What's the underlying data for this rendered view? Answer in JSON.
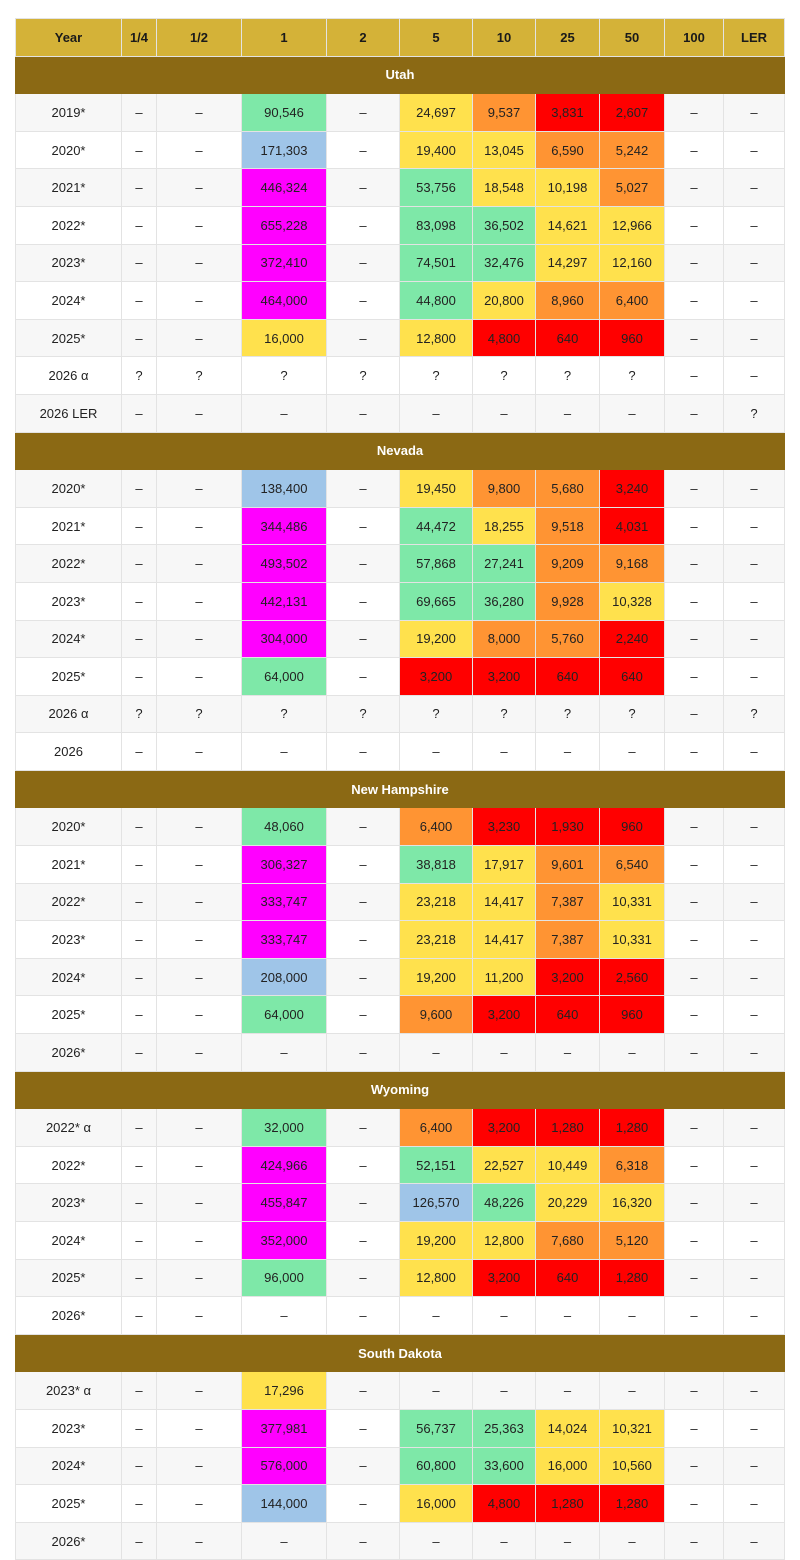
{
  "columns": [
    "Year",
    "1/4",
    "1/2",
    "1",
    "2",
    "5",
    "10",
    "25",
    "50",
    "100",
    "LER"
  ],
  "colors": {
    "green": "#7ee8a8",
    "blue": "#9fc5e8",
    "magenta": "#ff00ff",
    "yellow": "#ffe14d",
    "orange": "#ff9433",
    "red": "#ff0000",
    "section": "#8b6914",
    "header": "#d4b238"
  },
  "sections": [
    {
      "name": "Utah",
      "rows": [
        {
          "cells": [
            "2019*",
            "–",
            "–",
            "90,546",
            "–",
            "24,697",
            "9,537",
            "3,831",
            "2,607",
            "–",
            "–"
          ],
          "colors": [
            "",
            "",
            "",
            "green",
            "",
            "yellow",
            "orange",
            "red",
            "red",
            "",
            ""
          ]
        },
        {
          "cells": [
            "2020*",
            "–",
            "–",
            "171,303",
            "–",
            "19,400",
            "13,045",
            "6,590",
            "5,242",
            "–",
            "–"
          ],
          "colors": [
            "",
            "",
            "",
            "blue",
            "",
            "yellow",
            "yellow",
            "orange",
            "orange",
            "",
            ""
          ]
        },
        {
          "cells": [
            "2021*",
            "–",
            "–",
            "446,324",
            "–",
            "53,756",
            "18,548",
            "10,198",
            "5,027",
            "–",
            "–"
          ],
          "colors": [
            "",
            "",
            "",
            "magenta",
            "",
            "green",
            "yellow",
            "yellow",
            "orange",
            "",
            ""
          ]
        },
        {
          "cells": [
            "2022*",
            "–",
            "–",
            "655,228",
            "–",
            "83,098",
            "36,502",
            "14,621",
            "12,966",
            "–",
            "–"
          ],
          "colors": [
            "",
            "",
            "",
            "magenta",
            "",
            "green",
            "green",
            "yellow",
            "yellow",
            "",
            ""
          ]
        },
        {
          "cells": [
            "2023*",
            "–",
            "–",
            "372,410",
            "–",
            "74,501",
            "32,476",
            "14,297",
            "12,160",
            "–",
            "–"
          ],
          "colors": [
            "",
            "",
            "",
            "magenta",
            "",
            "green",
            "green",
            "yellow",
            "yellow",
            "",
            ""
          ]
        },
        {
          "cells": [
            "2024*",
            "–",
            "–",
            "464,000",
            "–",
            "44,800",
            "20,800",
            "8,960",
            "6,400",
            "–",
            "–"
          ],
          "colors": [
            "",
            "",
            "",
            "magenta",
            "",
            "green",
            "yellow",
            "orange",
            "orange",
            "",
            ""
          ]
        },
        {
          "cells": [
            "2025*",
            "–",
            "–",
            "16,000",
            "–",
            "12,800",
            "4,800",
            "640",
            "960",
            "–",
            "–"
          ],
          "colors": [
            "",
            "",
            "",
            "yellow",
            "",
            "yellow",
            "red",
            "red",
            "red",
            "",
            ""
          ]
        },
        {
          "cells": [
            "2026 α",
            "?",
            "?",
            "?",
            "?",
            "?",
            "?",
            "?",
            "?",
            "–",
            "–"
          ],
          "colors": [
            "",
            "",
            "",
            "",
            "",
            "",
            "",
            "",
            "",
            "",
            ""
          ]
        },
        {
          "cells": [
            "2026 LER",
            "–",
            "–",
            "–",
            "–",
            "–",
            "–",
            "–",
            "–",
            "–",
            "?"
          ],
          "colors": [
            "",
            "",
            "",
            "",
            "",
            "",
            "",
            "",
            "",
            "",
            ""
          ]
        }
      ]
    },
    {
      "name": "Nevada",
      "rows": [
        {
          "cells": [
            "2020*",
            "–",
            "–",
            "138,400",
            "–",
            "19,450",
            "9,800",
            "5,680",
            "3,240",
            "–",
            "–"
          ],
          "colors": [
            "",
            "",
            "",
            "blue",
            "",
            "yellow",
            "orange",
            "orange",
            "red",
            "",
            ""
          ]
        },
        {
          "cells": [
            "2021*",
            "–",
            "–",
            "344,486",
            "–",
            "44,472",
            "18,255",
            "9,518",
            "4,031",
            "–",
            "–"
          ],
          "colors": [
            "",
            "",
            "",
            "magenta",
            "",
            "green",
            "yellow",
            "orange",
            "red",
            "",
            ""
          ]
        },
        {
          "cells": [
            "2022*",
            "–",
            "–",
            "493,502",
            "–",
            "57,868",
            "27,241",
            "9,209",
            "9,168",
            "–",
            "–"
          ],
          "colors": [
            "",
            "",
            "",
            "magenta",
            "",
            "green",
            "green",
            "orange",
            "orange",
            "",
            ""
          ]
        },
        {
          "cells": [
            "2023*",
            "–",
            "–",
            "442,131",
            "–",
            "69,665",
            "36,280",
            "9,928",
            "10,328",
            "–",
            "–"
          ],
          "colors": [
            "",
            "",
            "",
            "magenta",
            "",
            "green",
            "green",
            "orange",
            "yellow",
            "",
            ""
          ]
        },
        {
          "cells": [
            "2024*",
            "–",
            "–",
            "304,000",
            "–",
            "19,200",
            "8,000",
            "5,760",
            "2,240",
            "–",
            "–"
          ],
          "colors": [
            "",
            "",
            "",
            "magenta",
            "",
            "yellow",
            "orange",
            "orange",
            "red",
            "",
            ""
          ]
        },
        {
          "cells": [
            "2025*",
            "–",
            "–",
            "64,000",
            "–",
            "3,200",
            "3,200",
            "640",
            "640",
            "–",
            "–"
          ],
          "colors": [
            "",
            "",
            "",
            "green",
            "",
            "red",
            "red",
            "red",
            "red",
            "",
            ""
          ]
        },
        {
          "cells": [
            "2026 α",
            "?",
            "?",
            "?",
            "?",
            "?",
            "?",
            "?",
            "?",
            "–",
            "?"
          ],
          "colors": [
            "",
            "",
            "",
            "",
            "",
            "",
            "",
            "",
            "",
            "",
            ""
          ]
        },
        {
          "cells": [
            "2026",
            "–",
            "–",
            "–",
            "–",
            "–",
            "–",
            "–",
            "–",
            "–",
            "–"
          ],
          "colors": [
            "",
            "",
            "",
            "",
            "",
            "",
            "",
            "",
            "",
            "",
            ""
          ]
        }
      ]
    },
    {
      "name": "New Hampshire",
      "rows": [
        {
          "cells": [
            "2020*",
            "–",
            "–",
            "48,060",
            "–",
            "6,400",
            "3,230",
            "1,930",
            "960",
            "–",
            "–"
          ],
          "colors": [
            "",
            "",
            "",
            "green",
            "",
            "orange",
            "red",
            "red",
            "red",
            "",
            ""
          ]
        },
        {
          "cells": [
            "2021*",
            "–",
            "–",
            "306,327",
            "–",
            "38,818",
            "17,917",
            "9,601",
            "6,540",
            "–",
            "–"
          ],
          "colors": [
            "",
            "",
            "",
            "magenta",
            "",
            "green",
            "yellow",
            "orange",
            "orange",
            "",
            ""
          ]
        },
        {
          "cells": [
            "2022*",
            "–",
            "–",
            "333,747",
            "–",
            "23,218",
            "14,417",
            "7,387",
            "10,331",
            "–",
            "–"
          ],
          "colors": [
            "",
            "",
            "",
            "magenta",
            "",
            "yellow",
            "yellow",
            "orange",
            "yellow",
            "",
            ""
          ]
        },
        {
          "cells": [
            "2023*",
            "–",
            "–",
            "333,747",
            "–",
            "23,218",
            "14,417",
            "7,387",
            "10,331",
            "–",
            "–"
          ],
          "colors": [
            "",
            "",
            "",
            "magenta",
            "",
            "yellow",
            "yellow",
            "orange",
            "yellow",
            "",
            ""
          ]
        },
        {
          "cells": [
            "2024*",
            "–",
            "–",
            "208,000",
            "–",
            "19,200",
            "11,200",
            "3,200",
            "2,560",
            "–",
            "–"
          ],
          "colors": [
            "",
            "",
            "",
            "blue",
            "",
            "yellow",
            "yellow",
            "red",
            "red",
            "",
            ""
          ]
        },
        {
          "cells": [
            "2025*",
            "–",
            "–",
            "64,000",
            "–",
            "9,600",
            "3,200",
            "640",
            "960",
            "–",
            "–"
          ],
          "colors": [
            "",
            "",
            "",
            "green",
            "",
            "orange",
            "red",
            "red",
            "red",
            "",
            ""
          ]
        },
        {
          "cells": [
            "2026*",
            "–",
            "–",
            "–",
            "–",
            "–",
            "–",
            "–",
            "–",
            "–",
            "–"
          ],
          "colors": [
            "",
            "",
            "",
            "",
            "",
            "",
            "",
            "",
            "",
            "",
            ""
          ]
        }
      ]
    },
    {
      "name": "Wyoming",
      "rows": [
        {
          "cells": [
            "2022* α",
            "–",
            "–",
            "32,000",
            "–",
            "6,400",
            "3,200",
            "1,280",
            "1,280",
            "–",
            "–"
          ],
          "colors": [
            "",
            "",
            "",
            "green",
            "",
            "orange",
            "red",
            "red",
            "red",
            "",
            ""
          ]
        },
        {
          "cells": [
            "2022*",
            "–",
            "–",
            "424,966",
            "–",
            "52,151",
            "22,527",
            "10,449",
            "6,318",
            "–",
            "–"
          ],
          "colors": [
            "",
            "",
            "",
            "magenta",
            "",
            "green",
            "yellow",
            "yellow",
            "orange",
            "",
            ""
          ]
        },
        {
          "cells": [
            "2023*",
            "–",
            "–",
            "455,847",
            "–",
            "126,570",
            "48,226",
            "20,229",
            "16,320",
            "–",
            "–"
          ],
          "colors": [
            "",
            "",
            "",
            "magenta",
            "",
            "blue",
            "green",
            "yellow",
            "yellow",
            "",
            ""
          ]
        },
        {
          "cells": [
            "2024*",
            "–",
            "–",
            "352,000",
            "–",
            "19,200",
            "12,800",
            "7,680",
            "5,120",
            "–",
            "–"
          ],
          "colors": [
            "",
            "",
            "",
            "magenta",
            "",
            "yellow",
            "yellow",
            "orange",
            "orange",
            "",
            ""
          ]
        },
        {
          "cells": [
            "2025*",
            "–",
            "–",
            "96,000",
            "–",
            "12,800",
            "3,200",
            "640",
            "1,280",
            "–",
            "–"
          ],
          "colors": [
            "",
            "",
            "",
            "green",
            "",
            "yellow",
            "red",
            "red",
            "red",
            "",
            ""
          ]
        },
        {
          "cells": [
            "2026*",
            "–",
            "–",
            "–",
            "–",
            "–",
            "–",
            "–",
            "–",
            "–",
            "–"
          ],
          "colors": [
            "",
            "",
            "",
            "",
            "",
            "",
            "",
            "",
            "",
            "",
            ""
          ]
        }
      ]
    },
    {
      "name": "South Dakota",
      "rows": [
        {
          "cells": [
            "2023* α",
            "–",
            "–",
            "17,296",
            "–",
            "–",
            "–",
            "–",
            "–",
            "–",
            "–"
          ],
          "colors": [
            "",
            "",
            "",
            "yellow",
            "",
            "",
            "",
            "",
            "",
            "",
            ""
          ]
        },
        {
          "cells": [
            "2023*",
            "–",
            "–",
            "377,981",
            "–",
            "56,737",
            "25,363",
            "14,024",
            "10,321",
            "–",
            "–"
          ],
          "colors": [
            "",
            "",
            "",
            "magenta",
            "",
            "green",
            "green",
            "yellow",
            "yellow",
            "",
            ""
          ]
        },
        {
          "cells": [
            "2024*",
            "–",
            "–",
            "576,000",
            "–",
            "60,800",
            "33,600",
            "16,000",
            "10,560",
            "–",
            "–"
          ],
          "colors": [
            "",
            "",
            "",
            "magenta",
            "",
            "green",
            "green",
            "yellow",
            "yellow",
            "",
            ""
          ]
        },
        {
          "cells": [
            "2025*",
            "–",
            "–",
            "144,000",
            "–",
            "16,000",
            "4,800",
            "1,280",
            "1,280",
            "–",
            "–"
          ],
          "colors": [
            "",
            "",
            "",
            "blue",
            "",
            "yellow",
            "red",
            "red",
            "red",
            "",
            ""
          ]
        },
        {
          "cells": [
            "2026*",
            "–",
            "–",
            "–",
            "–",
            "–",
            "–",
            "–",
            "–",
            "–",
            "–"
          ],
          "colors": [
            "",
            "",
            "",
            "",
            "",
            "",
            "",
            "",
            "",
            "",
            ""
          ]
        }
      ]
    }
  ]
}
